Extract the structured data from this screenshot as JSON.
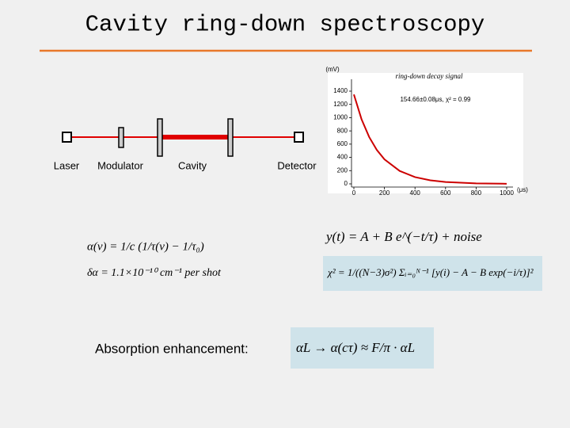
{
  "title": "Cavity ring-down spectroscopy",
  "diagram": {
    "labels": [
      "Laser",
      "Modulator",
      "Cavity",
      "Detector"
    ]
  },
  "chart_data": {
    "type": "line",
    "title": "ring-down decay signal",
    "ylabel": "(mV)",
    "xlabel": "(μs)",
    "annotation": "154.66±0.08μs, χ² = 0.99",
    "x": [
      0,
      50,
      100,
      150,
      200,
      300,
      400,
      500,
      600,
      800,
      1000
    ],
    "series": [
      {
        "name": "signal",
        "color": "#cc0000",
        "values": [
          1350,
          977,
          708,
          513,
          371,
          195,
          102,
          54,
          28,
          8,
          2
        ]
      }
    ],
    "xlim": [
      0,
      1000
    ],
    "ylim": [
      0,
      1400
    ],
    "xticks": [
      0,
      200,
      400,
      600,
      800,
      1000
    ],
    "yticks": [
      0,
      200,
      400,
      600,
      800,
      1000,
      1200,
      1400
    ]
  },
  "equations": [
    "α(ν) = 1/c (1/τ(ν) − 1/τ₀)",
    "δα = 1.1×10⁻¹⁰ cm⁻¹ per shot",
    "y(t) = A + B e^(−t/τ) + noise",
    "χ² = 1/((N−3)σ²) Σᵢ₌₀ᴺ⁻¹ [y(i) − A − B exp(−i/τ)]²",
    "αL → α(cτ) ≈ F/π · αL"
  ],
  "caption": "Absorption enhancement:"
}
